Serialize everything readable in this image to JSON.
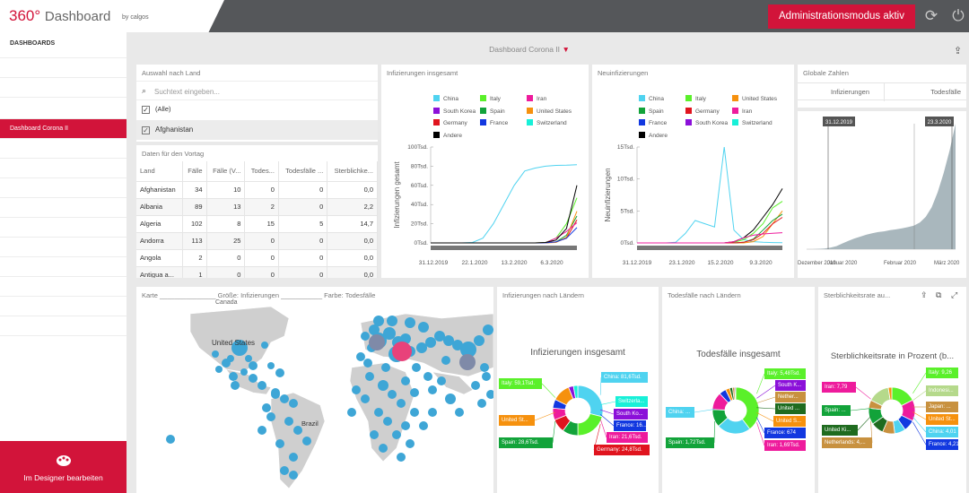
{
  "app": {
    "title_a": "360°",
    "title_b": "Dashboard",
    "by": "by calgos",
    "admin_label": "Administrationsmodus aktiv"
  },
  "icons": {
    "refresh": "refresh-icon",
    "power": "power-icon",
    "filter": "filter-icon",
    "export": "export-icon",
    "designer": "paint-palette-icon"
  },
  "sidebar": {
    "heading": "DASHBOARDS",
    "active": "Dashboard Corona II",
    "designer_label": "Im Designer bearbeiten"
  },
  "dashboard_title": "Dashboard Corona II",
  "country_filter": {
    "title": "Auswahl nach Land",
    "placeholder": "Suchtext eingeben...",
    "items": [
      "(Alle)",
      "Afghanistan"
    ]
  },
  "daily_table": {
    "title": "Daten für den Vortag",
    "headers": [
      "Land",
      "Fälle",
      "Fälle (V...",
      "Todes...",
      "Todesfälle ...",
      "Sterblichke..."
    ],
    "rows": [
      [
        "Afghanistan",
        "34",
        "10",
        "0",
        "0",
        "0,0"
      ],
      [
        "Albania",
        "89",
        "13",
        "2",
        "0",
        "2,2"
      ],
      [
        "Algeria",
        "102",
        "8",
        "15",
        "5",
        "14,7"
      ],
      [
        "Andorra",
        "113",
        "25",
        "0",
        "0",
        "0,0"
      ],
      [
        "Angola",
        "2",
        "0",
        "0",
        "0",
        "0,0"
      ],
      [
        "Antigua a...",
        "1",
        "0",
        "0",
        "0",
        "0,0"
      ]
    ]
  },
  "colors": {
    "China": "#4fd3f0",
    "Italy": "#5af02a",
    "Iran": "#ee1b9c",
    "South Korea": "#8b10d9",
    "Spain": "#12a33a",
    "United States": "#f6910e",
    "Germany": "#e0141e",
    "France": "#1238e0",
    "Switzerland": "#18f0d8",
    "Andere": "#000000"
  },
  "chart_data": [
    {
      "type": "line",
      "title": "Infizierungen insgesamt",
      "ylabel": "Infizierungen gesamt",
      "yticks": [
        "0Tsd.",
        "20Tsd.",
        "40Tsd.",
        "60Tsd.",
        "80Tsd.",
        "100Tsd."
      ],
      "xticks": [
        "31.12.2019",
        "22.1.2020",
        "13.2.2020",
        "6.3.2020"
      ],
      "legend": [
        "China",
        "Italy",
        "Iran",
        "South Korea",
        "Spain",
        "United States",
        "Germany",
        "France",
        "Switzerland",
        "Andere"
      ],
      "ylim": [
        0,
        100000
      ],
      "series": [
        {
          "name": "China",
          "values": [
            0,
            0,
            0,
            0,
            500,
            5000,
            20000,
            40000,
            60000,
            75000,
            78000,
            80000,
            80800,
            81000,
            81500
          ]
        },
        {
          "name": "Italy",
          "values": [
            0,
            0,
            0,
            0,
            0,
            0,
            0,
            0,
            0,
            0,
            0,
            500,
            5000,
            20000,
            47000
          ]
        },
        {
          "name": "Spain",
          "values": [
            0,
            0,
            0,
            0,
            0,
            0,
            0,
            0,
            0,
            0,
            0,
            0,
            1000,
            8000,
            28000
          ]
        },
        {
          "name": "Germany",
          "values": [
            0,
            0,
            0,
            0,
            0,
            0,
            0,
            0,
            0,
            0,
            0,
            100,
            1000,
            5000,
            24000
          ]
        },
        {
          "name": "United States",
          "values": [
            0,
            0,
            0,
            0,
            0,
            0,
            0,
            0,
            0,
            0,
            0,
            0,
            500,
            6000,
            33000
          ]
        },
        {
          "name": "Iran",
          "values": [
            0,
            0,
            0,
            0,
            0,
            0,
            0,
            0,
            0,
            0,
            0,
            300,
            5000,
            12000,
            21000
          ]
        },
        {
          "name": "France",
          "values": [
            0,
            0,
            0,
            0,
            0,
            0,
            0,
            0,
            0,
            0,
            0,
            100,
            1000,
            5000,
            16000
          ]
        },
        {
          "name": "Andere",
          "values": [
            0,
            0,
            0,
            0,
            0,
            0,
            0,
            0,
            0,
            0,
            0,
            500,
            3000,
            15000,
            60000
          ]
        }
      ]
    },
    {
      "type": "line",
      "title": "Neuinfizierungen",
      "ylabel": "Neuinfizierungen",
      "yticks": [
        "0Tsd.",
        "5Tsd.",
        "10Tsd.",
        "15Tsd."
      ],
      "xticks": [
        "31.12.2019",
        "23.1.2020",
        "15.2.2020",
        "9.3.2020"
      ],
      "legend": [
        "China",
        "Italy",
        "United States",
        "Spain",
        "Germany",
        "Iran",
        "France",
        "South Korea",
        "Switzerland",
        "Andere"
      ],
      "ylim": [
        0,
        15000
      ],
      "series": [
        {
          "name": "China",
          "values": [
            0,
            0,
            0,
            0,
            100,
            1500,
            3500,
            3000,
            2500,
            15000,
            2000,
            500,
            200,
            100,
            50,
            30
          ]
        },
        {
          "name": "Italy",
          "values": [
            0,
            0,
            0,
            0,
            0,
            0,
            0,
            0,
            0,
            0,
            100,
            500,
            1500,
            3000,
            5500,
            6500
          ]
        },
        {
          "name": "Andere",
          "values": [
            0,
            0,
            0,
            0,
            0,
            0,
            0,
            0,
            0,
            0,
            200,
            800,
            2000,
            4000,
            6000,
            8500
          ]
        },
        {
          "name": "United States",
          "values": [
            0,
            0,
            0,
            0,
            0,
            0,
            0,
            0,
            0,
            0,
            0,
            0,
            200,
            1000,
            3000,
            5000
          ]
        },
        {
          "name": "Spain",
          "values": [
            0,
            0,
            0,
            0,
            0,
            0,
            0,
            0,
            0,
            0,
            0,
            100,
            600,
            2000,
            3500,
            4500
          ]
        },
        {
          "name": "Germany",
          "values": [
            0,
            0,
            0,
            0,
            0,
            0,
            0,
            0,
            0,
            0,
            0,
            100,
            500,
            1500,
            3000,
            4000
          ]
        },
        {
          "name": "Iran",
          "values": [
            0,
            0,
            0,
            0,
            0,
            0,
            0,
            0,
            0,
            0,
            200,
            800,
            1200,
            1400,
            1500,
            1600
          ]
        }
      ]
    },
    {
      "type": "area",
      "title": "Globale Zahlen",
      "headers": [
        "Infizierungen",
        "Todesfälle"
      ],
      "range_start": "31.12.2019",
      "range_end": "23.3.2020",
      "xticks": [
        "Dezember 2019",
        "Januar 2020",
        "Februar 2020",
        "März 2020"
      ],
      "values": [
        0,
        0,
        1,
        2,
        4,
        8,
        15,
        22,
        28,
        33,
        38,
        42,
        45,
        47,
        50,
        52,
        55,
        58,
        62,
        70,
        85,
        110,
        150,
        200,
        260,
        330
      ]
    },
    {
      "type": "pie",
      "title": "Infizierungen nach Ländern",
      "subtitle": "Infizierungen insgesamt",
      "labels": [
        {
          "text": "China: 81,6Tsd.",
          "color": "#4fd3f0"
        },
        {
          "text": "Italy: 59,1Tsd.",
          "color": "#5af02a"
        },
        {
          "text": "Switzerla...",
          "color": "#18f0d8"
        },
        {
          "text": "South Ko...",
          "color": "#8b10d9"
        },
        {
          "text": "France: 16...",
          "color": "#1238e0"
        },
        {
          "text": "United St...",
          "color": "#f6910e"
        },
        {
          "text": "Iran: 21,6Tsd.",
          "color": "#ee1b9c"
        },
        {
          "text": "Spain: 28,6Tsd.",
          "color": "#12a33a"
        },
        {
          "text": "Germany: 24,8Tsd.",
          "color": "#e0141e"
        }
      ],
      "values": [
        {
          "name": "China",
          "value": 81.6
        },
        {
          "name": "Italy",
          "value": 59.1
        },
        {
          "name": "Spain",
          "value": 28.6
        },
        {
          "name": "Germany",
          "value": 24.8
        },
        {
          "name": "Iran",
          "value": 21.6
        },
        {
          "name": "France",
          "value": 16
        },
        {
          "name": "United States",
          "value": 33
        },
        {
          "name": "South Korea",
          "value": 9
        },
        {
          "name": "Switzerland",
          "value": 8
        }
      ]
    },
    {
      "type": "pie",
      "title": "Todesfälle nach Ländern",
      "subtitle": "Todesfälle insgesamt",
      "labels": [
        {
          "text": "Italy: 5,48Tsd.",
          "color": "#5af02a"
        },
        {
          "text": "South K...",
          "color": "#8b10d9"
        },
        {
          "text": "Nether...",
          "color": "#c8913f"
        },
        {
          "text": "United ...",
          "color": "#1f6b1f"
        },
        {
          "text": "United S...",
          "color": "#f6910e"
        },
        {
          "text": "France: 674",
          "color": "#1238e0"
        },
        {
          "text": "Iran: 1,69Tsd.",
          "color": "#ee1b9c"
        },
        {
          "text": "China: ...",
          "color": "#4fd3f0"
        },
        {
          "text": "Spain: 1,72Tsd.",
          "color": "#12a33a"
        }
      ],
      "values": [
        {
          "name": "Italy",
          "value": 5.48
        },
        {
          "name": "China",
          "value": 3.27
        },
        {
          "name": "Spain",
          "value": 1.72
        },
        {
          "name": "Iran",
          "value": 1.69
        },
        {
          "name": "France",
          "value": 0.674
        },
        {
          "name": "United States",
          "value": 0.4
        },
        {
          "name": "United Kingdom",
          "value": 0.28
        },
        {
          "name": "Netherlands",
          "value": 0.21
        },
        {
          "name": "South Korea",
          "value": 0.1
        }
      ]
    },
    {
      "type": "pie",
      "title": "Sterblichkeitsrate au...",
      "subtitle": "Sterblichkeitsrate in Prozent (b...",
      "labels": [
        {
          "text": "Italy: 9,26",
          "color": "#5af02a"
        },
        {
          "text": "Indonesi...",
          "color": "#b5d98b"
        },
        {
          "text": "Japan: ...",
          "color": "#c8913f"
        },
        {
          "text": "United St...",
          "color": "#f6910e"
        },
        {
          "text": "China: 4,01",
          "color": "#4fd3f0"
        },
        {
          "text": "France: 4,21",
          "color": "#1238e0"
        },
        {
          "text": "Iran: 7,79",
          "color": "#ee1b9c"
        },
        {
          "text": "Spain: ...",
          "color": "#12a33a"
        },
        {
          "text": "United Ki...",
          "color": "#1f6b1f"
        },
        {
          "text": "Netherlands: 4,...",
          "color": "#c8913f"
        }
      ],
      "values": [
        {
          "name": "Italy",
          "value": 9.26
        },
        {
          "name": "Iran",
          "value": 7.79
        },
        {
          "name": "France",
          "value": 4.21
        },
        {
          "name": "China",
          "value": 4.01
        },
        {
          "name": "Netherlands",
          "value": 4.5
        },
        {
          "name": "United Kingdom",
          "value": 4.6
        },
        {
          "name": "Spain",
          "value": 6
        },
        {
          "name": "Japan",
          "value": 3
        },
        {
          "name": "Indonesia",
          "value": 8
        },
        {
          "name": "United States",
          "value": 1.3
        }
      ]
    }
  ],
  "map": {
    "title": "Karte _______________ Größe: Infizierungen ___________ Farbe: Todesfälle",
    "labels": [
      "Canada",
      "United States",
      "Brazil"
    ]
  }
}
